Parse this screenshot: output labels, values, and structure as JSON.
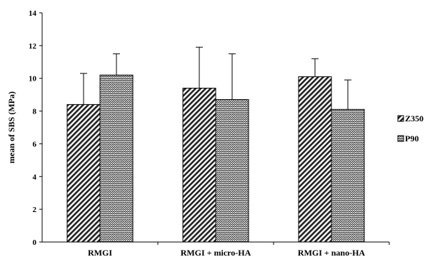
{
  "chart_data": {
    "type": "bar",
    "title": "",
    "xlabel": "",
    "ylabel": "mean of SBS (MPa)",
    "ylim": [
      0,
      14
    ],
    "yticks": [
      0,
      2,
      4,
      6,
      8,
      10,
      12,
      14
    ],
    "categories": [
      "RMGI",
      "RMGI + micro-HA",
      "RMGI + nano-HA"
    ],
    "series": [
      {
        "name": "Z350",
        "values": [
          8.4,
          9.4,
          10.1
        ],
        "errors": [
          1.9,
          2.5,
          1.1
        ],
        "pattern": "diagonal-hatch",
        "color": "#000000"
      },
      {
        "name": "P90",
        "values": [
          10.2,
          8.7,
          8.1
        ],
        "errors": [
          1.3,
          2.8,
          1.8
        ],
        "pattern": "zigzag-hatch",
        "color": "#000000"
      }
    ],
    "grid": false,
    "legend": "right",
    "error_bars": "positive"
  }
}
